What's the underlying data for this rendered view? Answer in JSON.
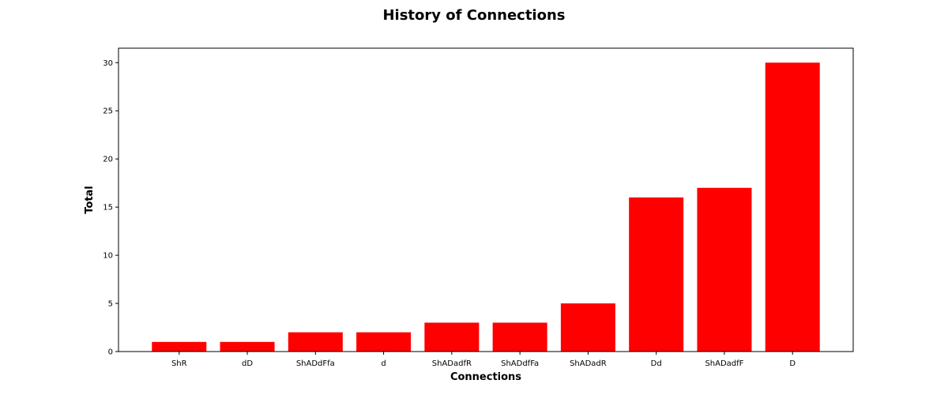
{
  "chart_data": {
    "type": "bar",
    "title": "History of Connections",
    "xlabel": "Connections",
    "ylabel": "Total",
    "categories": [
      "ShR",
      "dD",
      "ShADdFfa",
      "d",
      "ShADadfR",
      "ShADdfFa",
      "ShADadR",
      "Dd",
      "ShADadfF",
      "D"
    ],
    "values": [
      1,
      1,
      2,
      2,
      3,
      3,
      5,
      16,
      17,
      30
    ],
    "ylim": [
      0,
      31.5
    ],
    "yticks": [
      0,
      5,
      10,
      15,
      20,
      25,
      30
    ],
    "grid": false,
    "legend": "none",
    "bar_color": "#ff0000"
  }
}
